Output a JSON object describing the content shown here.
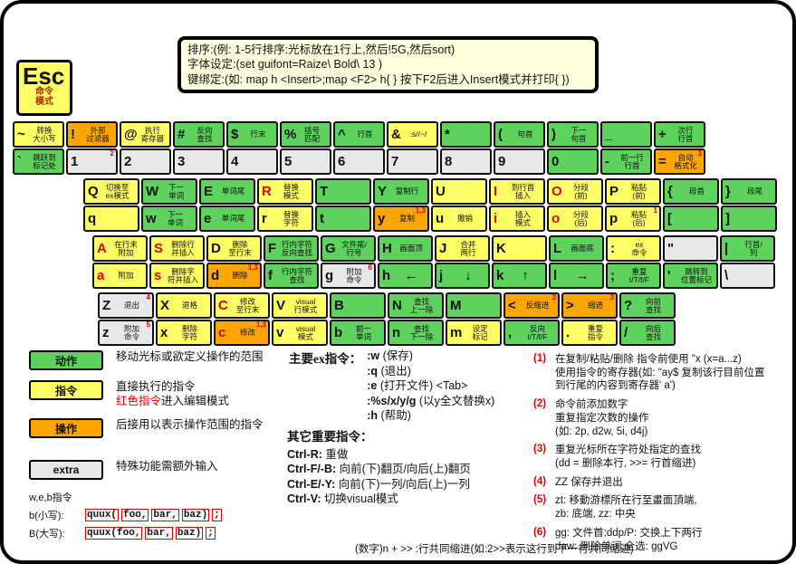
{
  "colors": {
    "green": "#5dd35d",
    "yellow": "#ffff66",
    "orange": "#ffa500",
    "gray": "#e8e8e8",
    "red": "#e00000",
    "info_bg": "#ffffdd"
  },
  "esc_key": {
    "label": "Esc",
    "sublabel": "命令\n模式"
  },
  "info_box": {
    "lines": [
      "排序:(例: 1-5行排序:光标放在1行上,然后!5G,然后sort)",
      "字体设定:(set guifont=Raize\\ Bold\\ 13 )",
      "键绑定:(如: map h <Insert>;map <F2> h{ } 按下F2后进入Insert模式并打印{ })"
    ]
  },
  "keyboard": {
    "rows": [
      {
        "keys": [
          {
            "top": {
              "ch": "~",
              "label": "转换\n大小写",
              "c": "y"
            },
            "bottom": {
              "ch": "`",
              "label": "跳跃到\n标记处",
              "c": "g"
            }
          },
          {
            "top": {
              "ch": "!",
              "label": "外部\n过滤器",
              "c": "o"
            },
            "bottom": {
              "ch": "1",
              "label": "",
              "c": "x",
              "sup": "2"
            }
          },
          {
            "top": {
              "ch": "@",
              "label": "执行\n寄存器",
              "c": "y"
            },
            "bottom": {
              "ch": "2",
              "label": "",
              "c": "x"
            }
          },
          {
            "top": {
              "ch": "#",
              "label": "反向\n查找",
              "c": "g"
            },
            "bottom": {
              "ch": "3",
              "label": "",
              "c": "x"
            }
          },
          {
            "top": {
              "ch": "$",
              "label": "行末",
              "c": "g"
            },
            "bottom": {
              "ch": "4",
              "label": "",
              "c": "x"
            }
          },
          {
            "top": {
              "ch": "%",
              "label": "括号\n匹配",
              "c": "g"
            },
            "bottom": {
              "ch": "5",
              "label": "",
              "c": "x"
            }
          },
          {
            "top": {
              "ch": "^",
              "label": "行首",
              "c": "g"
            },
            "bottom": {
              "ch": "6",
              "label": "",
              "c": "x"
            }
          },
          {
            "top": {
              "ch": "&",
              "label": ":s//~/",
              "c": "y"
            },
            "bottom": {
              "ch": "7",
              "label": "",
              "c": "x"
            }
          },
          {
            "top": {
              "ch": "*",
              "label": "",
              "c": "g"
            },
            "bottom": {
              "ch": "8",
              "label": "",
              "c": "x"
            }
          },
          {
            "top": {
              "ch": "(",
              "label": "句首",
              "c": "g"
            },
            "bottom": {
              "ch": "9",
              "label": "",
              "c": "x"
            }
          },
          {
            "top": {
              "ch": ")",
              "label": "下一\n句首",
              "c": "g"
            },
            "bottom": {
              "ch": "0",
              "label": "",
              "c": "g"
            }
          },
          {
            "top": {
              "ch": "_",
              "label": "",
              "c": "g"
            },
            "bottom": {
              "ch": "-",
              "label": "前一行\n行首",
              "c": "g"
            }
          },
          {
            "top": {
              "ch": "+",
              "label": "次行\n行首",
              "c": "g"
            },
            "bottom": {
              "ch": "=",
              "label": "自动\n格式化",
              "c": "o",
              "sup": "3"
            }
          }
        ]
      },
      {
        "keys": [
          {
            "top": {
              "ch": "Q",
              "label": "切换至\nex模式",
              "c": "y"
            },
            "bottom": {
              "ch": "q",
              "label": "",
              "c": "y"
            }
          },
          {
            "top": {
              "ch": "W",
              "label": "下一\n单词",
              "c": "g"
            },
            "bottom": {
              "ch": "w",
              "label": "下一\n单词",
              "c": "g"
            }
          },
          {
            "top": {
              "ch": "E",
              "label": "单词尾",
              "c": "g"
            },
            "bottom": {
              "ch": "e",
              "label": "单词尾",
              "c": "g"
            }
          },
          {
            "top": {
              "ch": "R",
              "label": "替换\n模式",
              "c": "y",
              "red": true
            },
            "bottom": {
              "ch": "r",
              "label": "替换\n字符",
              "c": "y"
            }
          },
          {
            "top": {
              "ch": "T",
              "label": "",
              "c": "g"
            },
            "bottom": {
              "ch": "t",
              "label": "",
              "c": "g"
            }
          },
          {
            "top": {
              "ch": "Y",
              "label": "复制行",
              "c": "g"
            },
            "bottom": {
              "ch": "y",
              "label": "复制",
              "c": "o",
              "sup": "1,3"
            }
          },
          {
            "top": {
              "ch": "U",
              "label": "",
              "c": "y"
            },
            "bottom": {
              "ch": "u",
              "label": "撤销",
              "c": "y"
            }
          },
          {
            "top": {
              "ch": "I",
              "label": "到行首\n插入",
              "c": "y",
              "red": true
            },
            "bottom": {
              "ch": "i",
              "label": "插入\n模式",
              "c": "y",
              "red": true
            }
          },
          {
            "top": {
              "ch": "O",
              "label": "分段\n(前)",
              "c": "y",
              "red": true
            },
            "bottom": {
              "ch": "o",
              "label": "分段\n(后)",
              "c": "y",
              "red": true
            }
          },
          {
            "top": {
              "ch": "P",
              "label": "粘贴\n(前)",
              "c": "y"
            },
            "bottom": {
              "ch": "p",
              "label": "粘贴\n(后)",
              "c": "y",
              "sup": "1"
            }
          },
          {
            "top": {
              "ch": "{",
              "label": "段首",
              "c": "g"
            },
            "bottom": {
              "ch": "[",
              "label": "",
              "c": "g"
            }
          },
          {
            "top": {
              "ch": "}",
              "label": "段尾",
              "c": "g"
            },
            "bottom": {
              "ch": "]",
              "label": "",
              "c": "g"
            }
          }
        ]
      },
      {
        "keys": [
          {
            "top": {
              "ch": "A",
              "label": "在行末\n附加",
              "c": "y",
              "red": true
            },
            "bottom": {
              "ch": "a",
              "label": "附加",
              "c": "y",
              "red": true
            }
          },
          {
            "top": {
              "ch": "S",
              "label": "删除行\n并插入",
              "c": "y",
              "red": true
            },
            "bottom": {
              "ch": "s",
              "label": "删除字\n符并插入",
              "c": "y",
              "red": true
            }
          },
          {
            "top": {
              "ch": "D",
              "label": "删除\n至行末",
              "c": "y"
            },
            "bottom": {
              "ch": "d",
              "label": "删除",
              "c": "o",
              "sup": "1,3"
            }
          },
          {
            "top": {
              "ch": "F",
              "label": "行内字符\n反向查找",
              "c": "g"
            },
            "bottom": {
              "ch": "f",
              "label": "行内字符\n查找",
              "c": "g"
            }
          },
          {
            "top": {
              "ch": "G",
              "label": "文件尾/\n行号",
              "c": "g"
            },
            "bottom": {
              "ch": "g",
              "label": "附加\n命令",
              "c": "x",
              "sup": "6"
            }
          },
          {
            "top": {
              "ch": "H",
              "label": "画面顶",
              "c": "g"
            },
            "bottom": {
              "ch": "h",
              "label": "←",
              "c": "g",
              "arrow": true
            }
          },
          {
            "top": {
              "ch": "J",
              "label": "合并\n两行",
              "c": "y"
            },
            "bottom": {
              "ch": "j",
              "label": "↓",
              "c": "g",
              "arrow": true
            }
          },
          {
            "top": {
              "ch": "K",
              "label": "",
              "c": "y"
            },
            "bottom": {
              "ch": "k",
              "label": "↑",
              "c": "g",
              "arrow": true
            }
          },
          {
            "top": {
              "ch": "L",
              "label": "画面底",
              "c": "g"
            },
            "bottom": {
              "ch": "l",
              "label": "→",
              "c": "g",
              "arrow": true
            }
          },
          {
            "top": {
              "ch": ":",
              "label": "ex\n命令",
              "c": "y"
            },
            "bottom": {
              "ch": ";",
              "label": "重复\nt/T/f/F",
              "c": "g"
            }
          },
          {
            "top": {
              "ch": "\"",
              "label": "",
              "c": "x"
            },
            "bottom": {
              "ch": "'",
              "label": "跳转到\n位置标记",
              "c": "g"
            }
          },
          {
            "top": {
              "ch": "|",
              "label": "行首/\n列",
              "c": "g"
            },
            "bottom": {
              "ch": "\\",
              "label": "",
              "c": "x"
            }
          }
        ]
      },
      {
        "keys": [
          {
            "top": {
              "ch": "Z",
              "label": "退出",
              "c": "x",
              "sup": "4"
            },
            "bottom": {
              "ch": "z",
              "label": "附加\n命令",
              "c": "x",
              "sup": "5"
            }
          },
          {
            "top": {
              "ch": "X",
              "label": "退格",
              "c": "y"
            },
            "bottom": {
              "ch": "x",
              "label": "删除\n字符",
              "c": "y"
            }
          },
          {
            "top": {
              "ch": "C",
              "label": "修改\n至行末",
              "c": "y",
              "red": true
            },
            "bottom": {
              "ch": "c",
              "label": "修改",
              "c": "o",
              "red": true,
              "sup": "1,3"
            }
          },
          {
            "top": {
              "ch": "V",
              "label": "visual\n行模式",
              "c": "y"
            },
            "bottom": {
              "ch": "v",
              "label": "visual\n模式",
              "c": "y"
            }
          },
          {
            "top": {
              "ch": "B",
              "label": "",
              "c": "g"
            },
            "bottom": {
              "ch": "b",
              "label": "前一\n单词",
              "c": "g"
            }
          },
          {
            "top": {
              "ch": "N",
              "label": "查找\n上一除",
              "c": "g"
            },
            "bottom": {
              "ch": "n",
              "label": "查找\n下一除",
              "c": "g"
            }
          },
          {
            "top": {
              "ch": "M",
              "label": "",
              "c": "g"
            },
            "bottom": {
              "ch": "m",
              "label": "设定\n标记",
              "c": "y"
            }
          },
          {
            "top": {
              "ch": "<",
              "label": "反缩进",
              "c": "o",
              "sup": "3"
            },
            "bottom": {
              "ch": ",",
              "label": "反向\nt/T/f/F",
              "c": "g"
            }
          },
          {
            "top": {
              "ch": ">",
              "label": "缩进",
              "c": "o",
              "sup": "3"
            },
            "bottom": {
              "ch": ".",
              "label": "重复\n指令",
              "c": "y"
            }
          },
          {
            "top": {
              "ch": "?",
              "label": "向前\n查找",
              "c": "g"
            },
            "bottom": {
              "ch": "/",
              "label": "向后\n查找",
              "c": "g"
            }
          }
        ]
      }
    ]
  },
  "legend": {
    "items": [
      {
        "label": "动作",
        "c": "g",
        "gap": false,
        "desc_lines": [
          [
            {
              "t": "移动光标或欲定义操作的范围"
            }
          ]
        ]
      },
      {
        "label": "指令",
        "c": "y",
        "gap": false,
        "desc_lines": [
          [
            {
              "t": "直接执行的指令"
            }
          ],
          [
            {
              "t": "红色指令",
              "red": true
            },
            {
              "t": "进入编辑模式"
            }
          ]
        ]
      },
      {
        "label": "操作",
        "c": "o",
        "gap": false,
        "desc_lines": [
          [
            {
              "t": "后接用以表示操作范围的指令"
            }
          ]
        ]
      },
      {
        "label": "extra",
        "c": "x",
        "gap": true,
        "desc_lines": [
          [
            {
              "t": "特殊功能需额外输入"
            }
          ]
        ]
      }
    ]
  },
  "ex_commands": {
    "title": "主要ex指令：",
    "items": [
      {
        "cmd": ":w",
        "desc": "(保存)"
      },
      {
        "cmd": ":q",
        "desc": "(退出)"
      },
      {
        "cmd": ":e",
        "desc": "(打开文件) <Tab>"
      },
      {
        "cmd": ":%s/x/y/g",
        "desc": "(以y全文替换x)"
      },
      {
        "cmd": ":h",
        "desc": "(帮助)"
      }
    ]
  },
  "other_commands": {
    "title": "其它重要指令：",
    "items": [
      {
        "cmd": "Ctrl-R:",
        "desc": "重做"
      },
      {
        "cmd": "Ctrl-F/-B:",
        "desc": "向前(下)翻页/向后(上)翻页"
      },
      {
        "cmd": "Ctrl-E/-Y:",
        "desc": "向前(下)一列/向后(上)一列"
      },
      {
        "cmd": "Ctrl-V:",
        "desc": "切换visual模式"
      }
    ]
  },
  "notes": {
    "items": [
      {
        "num": "(1)",
        "text": "在复制/粘贴/删除 指令前使用 \"x (x=a...z)\n使用指令的寄存器(如: \"ay$ 复制该行目前位置\n到行尾的内容到寄存器' a')"
      },
      {
        "num": "(2)",
        "text": "命令前添加数字\n重复指定次数的操作\n(如: 2p, d2w, 5i, d4j)"
      },
      {
        "num": "(3)",
        "text": "重复光标所在字符处指定的查找\n(dd = 删除本行, >>= 行首缩进)"
      },
      {
        "num": "(4)",
        "text": "ZZ  保存并退出"
      },
      {
        "num": "(5)",
        "text": "zt: 移動游標所在行至畫面頂端,\nzb: 底端, zz: 中央"
      },
      {
        "num": "(6)",
        "text": "gg: 文件首;ddp/P: 交换上下两行\ndaw: 删除单词;全选: ggVG"
      }
    ]
  },
  "web_examples": {
    "title": "w,e,b指令",
    "rows": [
      {
        "label": "b(小写):",
        "segments": [
          "quux(",
          "foo,",
          "bar,",
          "baz)",
          ";"
        ]
      },
      {
        "label": "B(大写):",
        "segments": [
          "quux(foo,",
          "bar,",
          "baz)",
          ";"
        ]
      }
    ]
  },
  "footer_note": "(数字)n + >> :行共同缩进(如:2>>表示这行到下一行共同缩进)"
}
